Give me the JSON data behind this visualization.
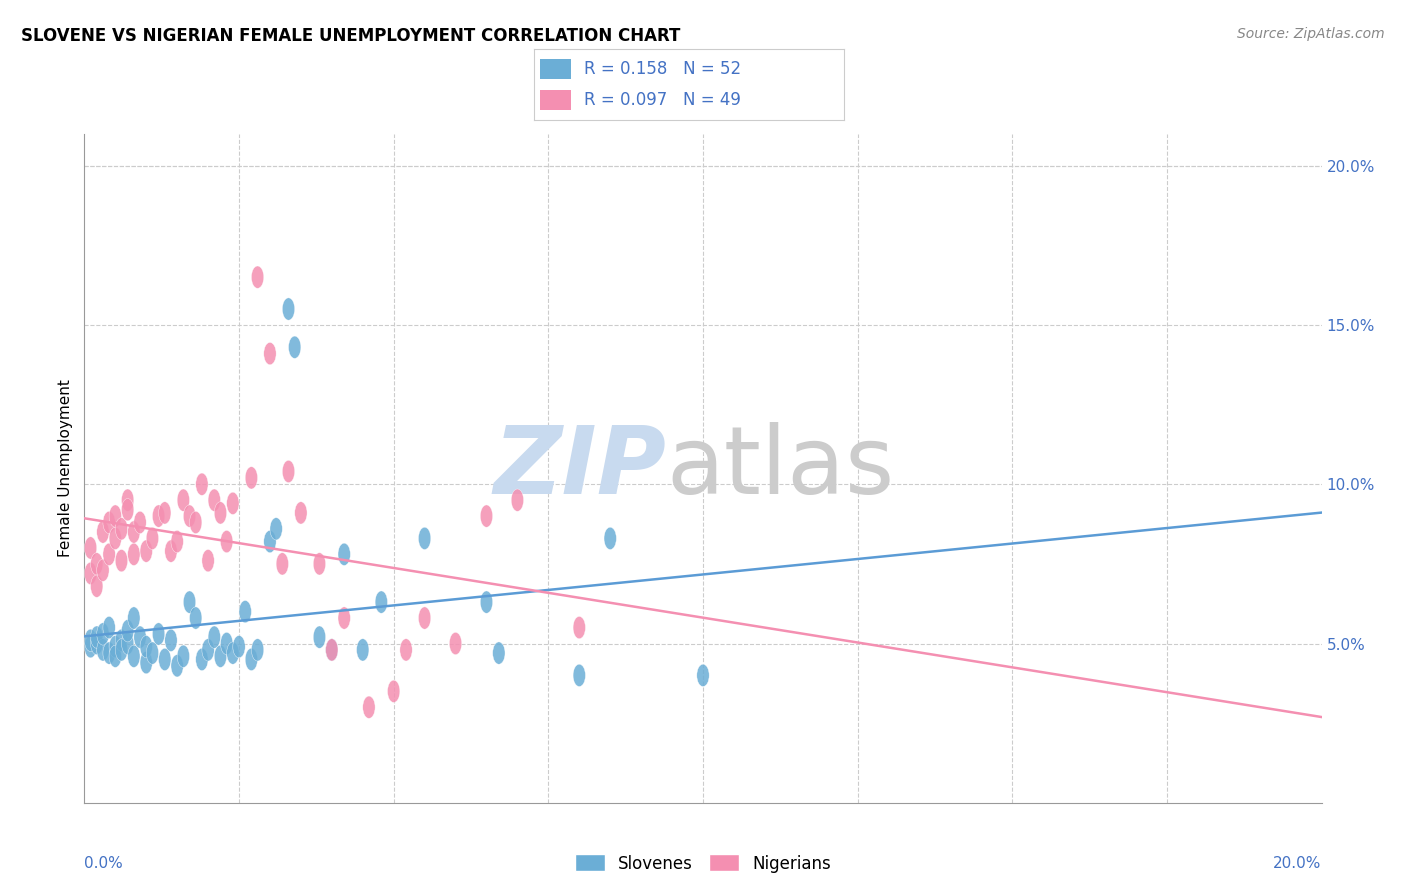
{
  "title": "SLOVENE VS NIGERIAN FEMALE UNEMPLOYMENT CORRELATION CHART",
  "source": "Source: ZipAtlas.com",
  "ylabel": "Female Unemployment",
  "legend_items": [
    {
      "label": "Slovenes",
      "color_fill": "#aec6e8",
      "R": "0.158",
      "N": "52"
    },
    {
      "label": "Nigerians",
      "color_fill": "#f4a7b9",
      "R": "0.097",
      "N": "49"
    }
  ],
  "slovene_points": [
    [
      0.001,
      0.049
    ],
    [
      0.001,
      0.051
    ],
    [
      0.002,
      0.05
    ],
    [
      0.002,
      0.052
    ],
    [
      0.003,
      0.048
    ],
    [
      0.003,
      0.053
    ],
    [
      0.004,
      0.047
    ],
    [
      0.004,
      0.055
    ],
    [
      0.005,
      0.049
    ],
    [
      0.005,
      0.046
    ],
    [
      0.006,
      0.051
    ],
    [
      0.006,
      0.048
    ],
    [
      0.007,
      0.05
    ],
    [
      0.007,
      0.054
    ],
    [
      0.008,
      0.046
    ],
    [
      0.008,
      0.058
    ],
    [
      0.009,
      0.052
    ],
    [
      0.01,
      0.044
    ],
    [
      0.01,
      0.049
    ],
    [
      0.011,
      0.047
    ],
    [
      0.012,
      0.053
    ],
    [
      0.013,
      0.045
    ],
    [
      0.014,
      0.051
    ],
    [
      0.015,
      0.043
    ],
    [
      0.016,
      0.046
    ],
    [
      0.017,
      0.063
    ],
    [
      0.018,
      0.058
    ],
    [
      0.019,
      0.045
    ],
    [
      0.02,
      0.048
    ],
    [
      0.021,
      0.052
    ],
    [
      0.022,
      0.046
    ],
    [
      0.023,
      0.05
    ],
    [
      0.024,
      0.047
    ],
    [
      0.025,
      0.049
    ],
    [
      0.026,
      0.06
    ],
    [
      0.027,
      0.045
    ],
    [
      0.028,
      0.048
    ],
    [
      0.03,
      0.082
    ],
    [
      0.031,
      0.086
    ],
    [
      0.033,
      0.155
    ],
    [
      0.034,
      0.143
    ],
    [
      0.038,
      0.052
    ],
    [
      0.04,
      0.048
    ],
    [
      0.042,
      0.078
    ],
    [
      0.045,
      0.048
    ],
    [
      0.048,
      0.063
    ],
    [
      0.055,
      0.083
    ],
    [
      0.065,
      0.063
    ],
    [
      0.067,
      0.047
    ],
    [
      0.08,
      0.04
    ],
    [
      0.085,
      0.083
    ],
    [
      0.1,
      0.04
    ]
  ],
  "nigerian_points": [
    [
      0.001,
      0.072
    ],
    [
      0.001,
      0.08
    ],
    [
      0.002,
      0.075
    ],
    [
      0.002,
      0.068
    ],
    [
      0.003,
      0.085
    ],
    [
      0.003,
      0.073
    ],
    [
      0.004,
      0.088
    ],
    [
      0.004,
      0.078
    ],
    [
      0.005,
      0.09
    ],
    [
      0.005,
      0.083
    ],
    [
      0.006,
      0.086
    ],
    [
      0.006,
      0.076
    ],
    [
      0.007,
      0.095
    ],
    [
      0.007,
      0.092
    ],
    [
      0.008,
      0.085
    ],
    [
      0.008,
      0.078
    ],
    [
      0.009,
      0.088
    ],
    [
      0.01,
      0.079
    ],
    [
      0.011,
      0.083
    ],
    [
      0.012,
      0.09
    ],
    [
      0.013,
      0.091
    ],
    [
      0.014,
      0.079
    ],
    [
      0.015,
      0.082
    ],
    [
      0.016,
      0.095
    ],
    [
      0.017,
      0.09
    ],
    [
      0.018,
      0.088
    ],
    [
      0.019,
      0.1
    ],
    [
      0.02,
      0.076
    ],
    [
      0.021,
      0.095
    ],
    [
      0.022,
      0.091
    ],
    [
      0.023,
      0.082
    ],
    [
      0.024,
      0.094
    ],
    [
      0.027,
      0.102
    ],
    [
      0.028,
      0.165
    ],
    [
      0.03,
      0.141
    ],
    [
      0.032,
      0.075
    ],
    [
      0.033,
      0.104
    ],
    [
      0.035,
      0.091
    ],
    [
      0.038,
      0.075
    ],
    [
      0.04,
      0.048
    ],
    [
      0.042,
      0.058
    ],
    [
      0.046,
      0.03
    ],
    [
      0.05,
      0.035
    ],
    [
      0.052,
      0.048
    ],
    [
      0.055,
      0.058
    ],
    [
      0.06,
      0.05
    ],
    [
      0.065,
      0.09
    ],
    [
      0.07,
      0.095
    ],
    [
      0.08,
      0.055
    ]
  ],
  "slovene_color": "#6baed6",
  "nigerian_color": "#f48fb1",
  "slovene_line_color": "#5b9bd5",
  "nigerian_line_color": "#f48fb1",
  "title_fontsize": 12,
  "source_fontsize": 10,
  "axis_color": "#4472c4",
  "watermark_zip_color": "#c8daef",
  "watermark_atlas_color": "#cccccc",
  "background_color": "#ffffff",
  "grid_color": "#cccccc",
  "xlim": [
    0.0,
    0.2
  ],
  "ylim": [
    0.0,
    0.21
  ],
  "yticks": [
    0.05,
    0.1,
    0.15,
    0.2
  ],
  "ytick_labels": [
    "5.0%",
    "10.0%",
    "15.0%",
    "20.0%"
  ]
}
